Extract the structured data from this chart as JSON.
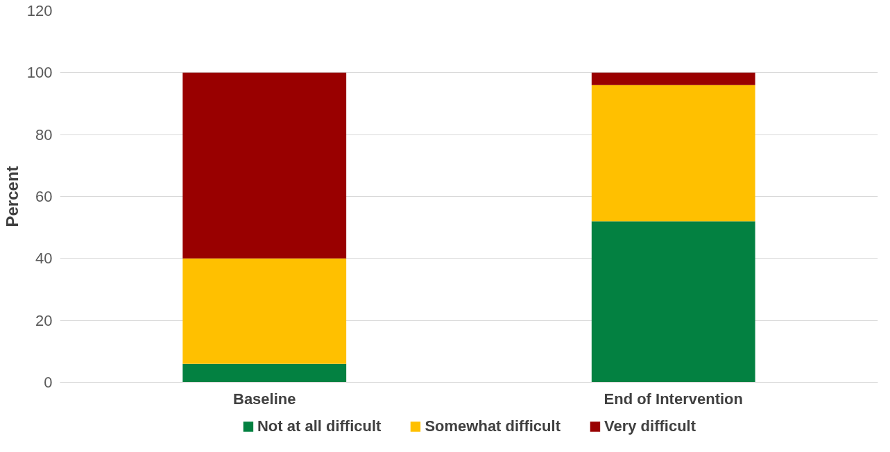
{
  "chart_data": {
    "type": "bar",
    "stacked": true,
    "ylabel": "Percent",
    "categories": [
      "Baseline",
      "End of Intervention"
    ],
    "series": [
      {
        "name": "Not at all difficult",
        "color": "#038141",
        "values": [
          6,
          52
        ]
      },
      {
        "name": "Somewhat difficult",
        "color": "#ffc000",
        "values": [
          34,
          44
        ]
      },
      {
        "name": "Very difficult",
        "color": "#990000",
        "values": [
          60,
          4
        ]
      }
    ],
    "ylim": [
      0,
      120
    ],
    "yticks": [
      0,
      20,
      40,
      60,
      80,
      100,
      120
    ],
    "grid": "y",
    "legend": "bottom"
  }
}
